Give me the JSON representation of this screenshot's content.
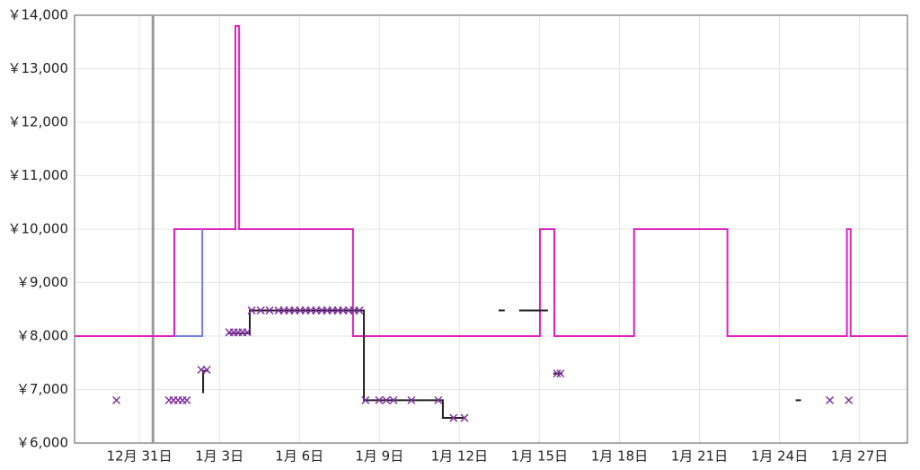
{
  "chart_data": {
    "type": "step-line",
    "xlim": [
      -2.43,
      28.8
    ],
    "ylim": [
      6000,
      14000
    ],
    "xticks": [
      {
        "value": 0,
        "label": "12月 31日"
      },
      {
        "value": 3,
        "label": "1月 3日"
      },
      {
        "value": 6,
        "label": "1月 6日"
      },
      {
        "value": 9,
        "label": "1月 9日"
      },
      {
        "value": 12,
        "label": "1月 12日"
      },
      {
        "value": 15,
        "label": "1月 15日"
      },
      {
        "value": 18,
        "label": "1月 18日"
      },
      {
        "value": 21,
        "label": "1月 21日"
      },
      {
        "value": 24,
        "label": "1月 24日"
      },
      {
        "value": 27,
        "label": "1月 27日"
      }
    ],
    "yticks": [
      {
        "value": 6000,
        "label": "￥6,000"
      },
      {
        "value": 7000,
        "label": "￥7,000"
      },
      {
        "value": 8000,
        "label": "￥8,000"
      },
      {
        "value": 9000,
        "label": "￥9,000"
      },
      {
        "value": 10000,
        "label": "￥10,000"
      },
      {
        "value": 11000,
        "label": "￥11,000"
      },
      {
        "value": 12000,
        "label": "￥12,000"
      },
      {
        "value": 13000,
        "label": "￥13,000"
      },
      {
        "value": 14000,
        "label": "￥14,000"
      }
    ],
    "grid": true,
    "vline": 0.51,
    "vline_color": "#999999",
    "series": [
      {
        "color": "#e020c0",
        "kind": "step",
        "x": [
          -2.43,
          1.31,
          3.6,
          3.74,
          8.01,
          15.02,
          15.56,
          18.55,
          22.05,
          26.53,
          26.67,
          28.8
        ],
        "values": [
          8000,
          10000,
          13800,
          10000,
          8000,
          10000,
          8000,
          10000,
          8000,
          10000,
          8000,
          8000
        ]
      },
      {
        "color": "#7080e0",
        "kind": "step",
        "x": [
          1.31,
          2.36
        ],
        "values": [
          8000,
          10000
        ]
      },
      {
        "color": "#222222",
        "kind": "step",
        "x": [
          2.36,
          2.39,
          2.59,
          null,
          3.33,
          4.14,
          8.42,
          11.38,
          12.22,
          null,
          13.47,
          13.7,
          null,
          14.24,
          15.32,
          null,
          15.52,
          15.86,
          null,
          24.61,
          24.81
        ],
        "values": [
          6950,
          7350,
          7350,
          null,
          8050,
          8480,
          6800,
          6470,
          6470,
          null,
          8480,
          8480,
          null,
          8480,
          8480,
          null,
          7300,
          7300,
          null,
          6800,
          6800
        ]
      },
      {
        "color": "#8030a0",
        "kind": "cross",
        "x": [
          -0.86,
          1.11,
          1.28,
          1.45,
          1.62,
          1.78,
          2.32,
          2.53,
          3.37,
          3.54,
          3.7,
          3.87,
          4.04,
          4.21,
          4.55,
          4.88,
          5.22,
          5.42,
          5.62,
          5.82,
          6.03,
          6.23,
          6.43,
          6.63,
          6.84,
          7.04,
          7.24,
          7.44,
          7.64,
          7.85,
          8.05,
          8.25,
          8.48,
          8.99,
          9.26,
          9.53,
          10.2,
          11.21,
          11.78,
          12.19,
          15.66,
          15.79,
          25.89,
          26.6
        ],
        "values": [
          6800,
          6800,
          6800,
          6800,
          6800,
          6800,
          7370,
          7370,
          8070,
          8070,
          8070,
          8070,
          8070,
          8480,
          8480,
          8480,
          8480,
          8480,
          8480,
          8480,
          8480,
          8480,
          8480,
          8480,
          8480,
          8480,
          8480,
          8480,
          8480,
          8480,
          8480,
          8480,
          6800,
          6800,
          6800,
          6800,
          6800,
          6800,
          6470,
          6470,
          7300,
          7300,
          6800,
          6800
        ]
      }
    ]
  }
}
